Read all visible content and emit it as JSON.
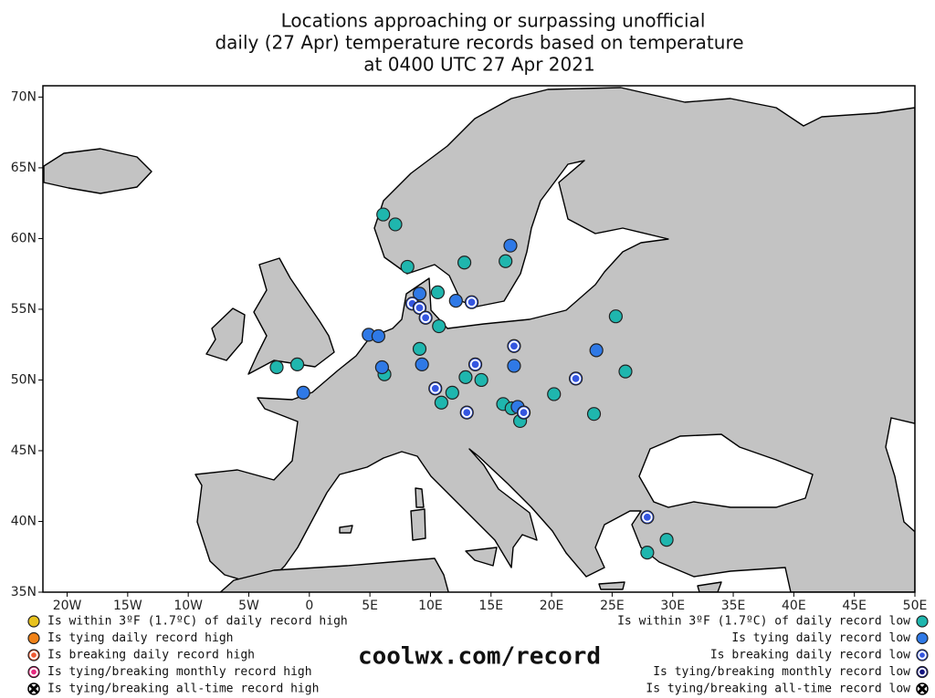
{
  "chart_data": {
    "type": "map",
    "title": [
      "Locations approaching or surpassing unofficial",
      "daily (27 Apr) temperature records based on temperature",
      "at 0400 UTC 27 Apr 2021"
    ],
    "credit": "coolwx.com/record",
    "xlim": [
      -22,
      50
    ],
    "ylim": [
      35,
      70.8
    ],
    "xticks": [
      {
        "value": -20,
        "label": "20W"
      },
      {
        "value": -15,
        "label": "15W"
      },
      {
        "value": -10,
        "label": "10W"
      },
      {
        "value": -5,
        "label": "5W"
      },
      0,
      {
        "value": 5,
        "label": "5E"
      },
      {
        "value": 10,
        "label": "10E"
      },
      {
        "value": 15,
        "label": "15E"
      },
      {
        "value": 20,
        "label": "20E"
      },
      {
        "value": 25,
        "label": "25E"
      },
      {
        "value": 30,
        "label": "30E"
      },
      {
        "value": 35,
        "label": "35E"
      },
      {
        "value": 40,
        "label": "40E"
      },
      {
        "value": 45,
        "label": "45E"
      },
      {
        "value": 50,
        "label": "50E"
      }
    ],
    "yticks": [
      {
        "value": 35,
        "label": "35N"
      },
      {
        "value": 40,
        "label": "40N"
      },
      {
        "value": 45,
        "label": "45N"
      },
      {
        "value": 50,
        "label": "50N"
      },
      {
        "value": 55,
        "label": "55N"
      },
      {
        "value": 60,
        "label": "60N"
      },
      {
        "value": 65,
        "label": "65N"
      },
      {
        "value": 70,
        "label": "70N"
      }
    ],
    "series": [
      {
        "name": "Is within 3ºF (1.7ºC) of daily record high",
        "color": "#e8c21e",
        "marker": "circle",
        "side": "left",
        "x": [],
        "y": []
      },
      {
        "name": "Is tying daily record high",
        "color": "#f08218",
        "marker": "circle",
        "side": "left",
        "x": [],
        "y": []
      },
      {
        "name": "Is breaking daily record high",
        "color": "#f05a32",
        "marker": "ringed",
        "side": "left",
        "x": [],
        "y": []
      },
      {
        "name": "Is tying/breaking monthly record high",
        "color": "#e6287e",
        "marker": "ringed",
        "side": "left",
        "x": [],
        "y": []
      },
      {
        "name": "Is tying/breaking all-time record high",
        "color": "#ffffff",
        "marker": "cross",
        "side": "left",
        "x": [],
        "y": []
      },
      {
        "name": "Is within 3ºF (1.7ºC) of daily record low",
        "color": "#1fb6ae",
        "marker": "circle",
        "side": "right",
        "x": [
          6.1,
          7.1,
          8.1,
          12.8,
          16.2,
          10.6,
          10.7,
          25.3,
          9.1,
          -2.7,
          -1.0,
          6.2,
          14.2,
          12.9,
          26.1,
          11.8,
          10.9,
          20.2,
          16.0,
          16.7,
          17.4,
          23.5,
          29.5,
          27.9
        ],
        "y": [
          61.7,
          61.0,
          58.0,
          58.3,
          58.4,
          56.2,
          53.8,
          54.5,
          52.2,
          50.9,
          51.1,
          50.4,
          50.0,
          50.2,
          50.6,
          49.1,
          48.4,
          49.0,
          48.3,
          48.0,
          47.1,
          47.6,
          38.7,
          37.8
        ]
      },
      {
        "name": "Is tying daily record low",
        "color": "#2f79e6",
        "marker": "circle",
        "side": "right",
        "x": [
          16.6,
          9.1,
          12.1,
          4.9,
          5.7,
          23.7,
          -0.5,
          6.0,
          9.3,
          16.9,
          17.2
        ],
        "y": [
          59.5,
          56.1,
          55.6,
          53.2,
          53.1,
          52.1,
          49.1,
          50.9,
          51.1,
          51.0,
          48.1
        ]
      },
      {
        "name": "Is breaking daily record low",
        "color": "#3556e0",
        "marker": "ringed",
        "side": "right",
        "x": [
          8.5,
          9.1,
          9.6,
          13.4,
          16.9,
          13.7,
          22.0,
          10.4,
          13.0,
          17.7,
          27.9
        ],
        "y": [
          55.4,
          55.1,
          54.4,
          55.5,
          52.4,
          51.1,
          50.1,
          49.4,
          47.7,
          47.7,
          40.3
        ]
      },
      {
        "name": "Is tying/breaking monthly record low",
        "color": "#121480",
        "marker": "ringed",
        "side": "right",
        "x": [],
        "y": []
      },
      {
        "name": "Is tying/breaking all-time record low",
        "color": "#ffffff",
        "marker": "cross",
        "side": "right",
        "x": [],
        "y": []
      }
    ]
  }
}
